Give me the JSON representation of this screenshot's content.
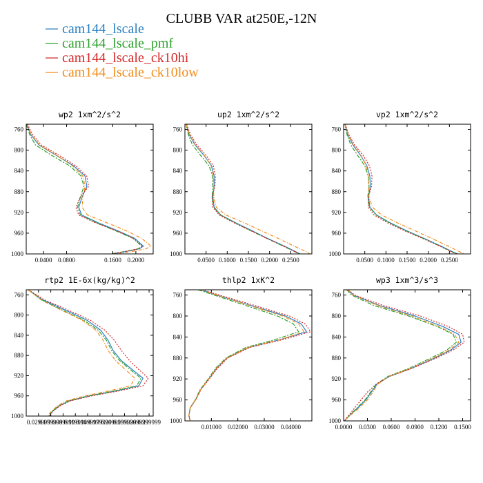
{
  "title": "CLUBB VAR at250E,-12N",
  "colors": {
    "cam144_lscale": "#2a7fc1",
    "cam144_lscale_pmf": "#2ea02e",
    "cam144_lscale_ck10hi": "#d62728",
    "cam144_lscale_ck10low": "#f28b1c"
  },
  "legend": [
    {
      "name": "cam144_lscale",
      "color": "#2a7fc1",
      "dash": ""
    },
    {
      "name": "cam144_lscale_pmf",
      "color": "#2ea02e",
      "dash": "6,2,2,2"
    },
    {
      "name": "cam144_lscale_ck10hi",
      "color": "#d62728",
      "dash": "2,2"
    },
    {
      "name": "cam144_lscale_ck10low",
      "color": "#f28b1c",
      "dash": "5,2,1,2"
    }
  ],
  "chart_data": [
    {
      "type": "line",
      "title": "wp2  1xm^2/s^2",
      "xlim": [
        0.01,
        0.23
      ],
      "ylim": [
        750,
        1000
      ],
      "xticks": [
        0.04,
        0.08,
        0.16,
        0.2
      ],
      "xtick_labels": [
        "0.0400",
        "0.0800",
        "0.1600",
        "0.2000"
      ],
      "yticks": [
        760,
        800,
        840,
        880,
        920,
        960,
        1000
      ],
      "y": [
        750,
        770,
        790,
        810,
        830,
        850,
        870,
        890,
        910,
        925,
        940,
        955,
        970,
        985,
        990,
        995,
        1000
      ],
      "series": [
        {
          "name": "cam144_lscale",
          "values": [
            0.011,
            0.018,
            0.032,
            0.062,
            0.092,
            0.112,
            0.115,
            0.107,
            0.101,
            0.106,
            0.135,
            0.168,
            0.198,
            0.213,
            0.206,
            0.185,
            0.16
          ]
        },
        {
          "name": "cam144_lscale_pmf",
          "values": [
            0.01,
            0.016,
            0.026,
            0.054,
            0.085,
            0.105,
            0.11,
            0.104,
            0.099,
            0.104,
            0.132,
            0.164,
            0.195,
            0.21,
            0.204,
            0.182,
            0.157
          ]
        },
        {
          "name": "cam144_lscale_ck10hi",
          "values": [
            0.012,
            0.021,
            0.036,
            0.067,
            0.096,
            0.115,
            0.118,
            0.104,
            0.096,
            0.101,
            0.13,
            0.166,
            0.196,
            0.212,
            0.205,
            0.183,
            0.158
          ]
        },
        {
          "name": "cam144_lscale_ck10low",
          "values": [
            0.011,
            0.019,
            0.033,
            0.063,
            0.09,
            0.108,
            0.112,
            0.108,
            0.107,
            0.116,
            0.15,
            0.183,
            0.21,
            0.226,
            0.218,
            0.195,
            0.17
          ]
        }
      ]
    },
    {
      "type": "line",
      "title": "up2  1xm^2/s^2",
      "xlim": [
        0.0,
        0.3
      ],
      "ylim": [
        750,
        1000
      ],
      "xticks": [
        0.05,
        0.1,
        0.15,
        0.2,
        0.25
      ],
      "xtick_labels": [
        "0.0500",
        "0.1000",
        "0.1500",
        "0.2000",
        "0.2500"
      ],
      "yticks": [
        760,
        800,
        840,
        880,
        920,
        960,
        1000
      ],
      "y": [
        750,
        770,
        790,
        810,
        830,
        850,
        870,
        890,
        910,
        925,
        940,
        955,
        970,
        985,
        995,
        1000
      ],
      "series": [
        {
          "name": "cam144_lscale",
          "values": [
            0.003,
            0.01,
            0.024,
            0.045,
            0.063,
            0.069,
            0.069,
            0.066,
            0.069,
            0.085,
            0.12,
            0.158,
            0.195,
            0.235,
            0.26,
            0.272
          ]
        },
        {
          "name": "cam144_lscale_pmf",
          "values": [
            0.003,
            0.008,
            0.018,
            0.037,
            0.057,
            0.065,
            0.066,
            0.064,
            0.068,
            0.084,
            0.118,
            0.155,
            0.193,
            0.232,
            0.258,
            0.27
          ]
        },
        {
          "name": "cam144_lscale_ck10hi",
          "values": [
            0.004,
            0.013,
            0.028,
            0.05,
            0.067,
            0.072,
            0.071,
            0.064,
            0.066,
            0.081,
            0.116,
            0.155,
            0.193,
            0.233,
            0.258,
            0.27
          ]
        },
        {
          "name": "cam144_lscale_ck10low",
          "values": [
            0.003,
            0.011,
            0.025,
            0.046,
            0.062,
            0.067,
            0.068,
            0.068,
            0.074,
            0.097,
            0.14,
            0.18,
            0.22,
            0.258,
            0.285,
            0.295
          ]
        }
      ]
    },
    {
      "type": "line",
      "title": "vp2  1xm^2/s^2",
      "xlim": [
        0.0,
        0.3
      ],
      "ylim": [
        750,
        1000
      ],
      "xticks": [
        0.05,
        0.1,
        0.15,
        0.2,
        0.25
      ],
      "xtick_labels": [
        "0.0500",
        "0.1000",
        "0.1500",
        "0.2000",
        "0.2500"
      ],
      "yticks": [
        760,
        800,
        840,
        880,
        920,
        960,
        1000
      ],
      "y": [
        750,
        770,
        790,
        810,
        830,
        850,
        870,
        890,
        910,
        925,
        940,
        955,
        970,
        985,
        995,
        1000
      ],
      "series": [
        {
          "name": "cam144_lscale",
          "values": [
            0.003,
            0.01,
            0.022,
            0.04,
            0.055,
            0.062,
            0.063,
            0.059,
            0.062,
            0.078,
            0.11,
            0.148,
            0.19,
            0.23,
            0.255,
            0.27
          ]
        },
        {
          "name": "cam144_lscale_pmf",
          "values": [
            0.003,
            0.008,
            0.017,
            0.033,
            0.05,
            0.058,
            0.06,
            0.057,
            0.061,
            0.077,
            0.108,
            0.146,
            0.188,
            0.228,
            0.253,
            0.268
          ]
        },
        {
          "name": "cam144_lscale_ck10hi",
          "values": [
            0.004,
            0.012,
            0.026,
            0.046,
            0.061,
            0.067,
            0.066,
            0.058,
            0.058,
            0.072,
            0.104,
            0.143,
            0.186,
            0.227,
            0.252,
            0.267
          ]
        },
        {
          "name": "cam144_lscale_ck10low",
          "values": [
            0.003,
            0.011,
            0.023,
            0.041,
            0.054,
            0.058,
            0.059,
            0.06,
            0.068,
            0.09,
            0.127,
            0.168,
            0.208,
            0.247,
            0.272,
            0.285
          ]
        }
      ]
    },
    {
      "type": "line",
      "title": "rtp2  1E-6x(kg/kg)^2",
      "xlim": [
        0.0,
        0.31
      ],
      "ylim": [
        750,
        1000
      ],
      "xticks": [
        0.029999,
        0.059999,
        0.089999,
        0.119999,
        0.149999,
        0.179999,
        0.209999,
        0.239999,
        0.269999,
        0.299999
      ],
      "xtick_labels": [
        "0.029999",
        "0.059999",
        "0.089999",
        "0.119999",
        "0.149999",
        "0.179999",
        "0.209999",
        "0.239999",
        "0.269999",
        "0.299999"
      ],
      "yticks": [
        760,
        800,
        840,
        880,
        920,
        960,
        1000
      ],
      "y": [
        750,
        770,
        790,
        810,
        830,
        850,
        870,
        890,
        910,
        925,
        940,
        950,
        960,
        970,
        980,
        990,
        995,
        1000
      ],
      "series": [
        {
          "name": "cam144_lscale",
          "values": [
            0.005,
            0.04,
            0.095,
            0.148,
            0.182,
            0.2,
            0.212,
            0.232,
            0.262,
            0.285,
            0.275,
            0.22,
            0.155,
            0.105,
            0.08,
            0.065,
            0.06,
            0.058
          ]
        },
        {
          "name": "cam144_lscale_pmf",
          "values": [
            0.005,
            0.038,
            0.088,
            0.14,
            0.176,
            0.196,
            0.208,
            0.228,
            0.257,
            0.28,
            0.27,
            0.216,
            0.152,
            0.103,
            0.079,
            0.064,
            0.059,
            0.057
          ]
        },
        {
          "name": "cam144_lscale_ck10hi",
          "values": [
            0.005,
            0.045,
            0.102,
            0.156,
            0.192,
            0.215,
            0.232,
            0.252,
            0.278,
            0.298,
            0.285,
            0.228,
            0.16,
            0.108,
            0.082,
            0.066,
            0.061,
            0.059
          ]
        },
        {
          "name": "cam144_lscale_ck10low",
          "values": [
            0.005,
            0.036,
            0.085,
            0.136,
            0.17,
            0.188,
            0.2,
            0.218,
            0.245,
            0.265,
            0.255,
            0.203,
            0.143,
            0.098,
            0.076,
            0.062,
            0.057,
            0.055
          ]
        }
      ]
    },
    {
      "type": "line",
      "title": "thlp2  1xK^2",
      "xlim": [
        0.0,
        0.048
      ],
      "ylim": [
        750,
        1000
      ],
      "xticks": [
        0.01,
        0.02,
        0.03,
        0.04
      ],
      "xtick_labels": [
        "0.01000",
        "0.02000",
        "0.03000",
        "0.04000"
      ],
      "yticks": [
        760,
        800,
        840,
        880,
        920,
        960,
        1000
      ],
      "y": [
        750,
        760,
        780,
        800,
        815,
        830,
        845,
        860,
        880,
        900,
        920,
        940,
        960,
        975,
        990,
        1000
      ],
      "series": [
        {
          "name": "cam144_lscale",
          "values": [
            0.006,
            0.012,
            0.025,
            0.038,
            0.044,
            0.046,
            0.036,
            0.024,
            0.016,
            0.012,
            0.009,
            0.006,
            0.004,
            0.002,
            0.0015,
            0.002
          ]
        },
        {
          "name": "cam144_lscale_pmf",
          "values": [
            0.005,
            0.011,
            0.023,
            0.035,
            0.041,
            0.043,
            0.034,
            0.023,
            0.0155,
            0.0115,
            0.0088,
            0.0058,
            0.0039,
            0.002,
            0.0015,
            0.002
          ]
        },
        {
          "name": "cam144_lscale_ck10hi",
          "values": [
            0.0065,
            0.013,
            0.0265,
            0.0395,
            0.0455,
            0.0475,
            0.037,
            0.0245,
            0.0162,
            0.0122,
            0.0092,
            0.0061,
            0.0041,
            0.002,
            0.0015,
            0.002
          ]
        },
        {
          "name": "cam144_lscale_ck10low",
          "values": [
            0.006,
            0.012,
            0.0245,
            0.037,
            0.043,
            0.045,
            0.036,
            0.0238,
            0.0158,
            0.0118,
            0.009,
            0.006,
            0.004,
            0.002,
            0.0015,
            0.002
          ]
        }
      ]
    },
    {
      "type": "line",
      "title": "wp3  1xm^3/s^3",
      "xlim": [
        0.0,
        0.16
      ],
      "ylim": [
        750,
        1000
      ],
      "xticks": [
        0.0,
        0.03,
        0.06,
        0.09,
        0.12,
        0.15
      ],
      "xtick_labels": [
        "0.0000",
        "0.0300",
        "0.0600",
        "0.0900",
        "0.1200",
        "0.1500"
      ],
      "yticks": [
        760,
        800,
        840,
        880,
        920,
        960,
        1000
      ],
      "y": [
        750,
        760,
        780,
        800,
        820,
        835,
        850,
        865,
        880,
        900,
        915,
        930,
        945,
        960,
        975,
        990,
        1000
      ],
      "series": [
        {
          "name": "cam144_lscale",
          "values": [
            0.005,
            0.012,
            0.045,
            0.09,
            0.125,
            0.145,
            0.148,
            0.135,
            0.115,
            0.085,
            0.058,
            0.042,
            0.035,
            0.028,
            0.018,
            0.007,
            0.001
          ]
        },
        {
          "name": "cam144_lscale_pmf",
          "values": [
            0.004,
            0.01,
            0.038,
            0.082,
            0.118,
            0.138,
            0.142,
            0.13,
            0.11,
            0.082,
            0.056,
            0.041,
            0.034,
            0.027,
            0.017,
            0.007,
            0.001
          ]
        },
        {
          "name": "cam144_lscale_ck10hi",
          "values": [
            0.006,
            0.014,
            0.05,
            0.097,
            0.132,
            0.15,
            0.152,
            0.138,
            0.117,
            0.086,
            0.058,
            0.041,
            0.03,
            0.022,
            0.014,
            0.006,
            0.001
          ]
        },
        {
          "name": "cam144_lscale_ck10low",
          "values": [
            0.005,
            0.012,
            0.043,
            0.086,
            0.12,
            0.14,
            0.145,
            0.133,
            0.113,
            0.084,
            0.057,
            0.043,
            0.037,
            0.03,
            0.02,
            0.008,
            0.001
          ]
        }
      ]
    }
  ]
}
